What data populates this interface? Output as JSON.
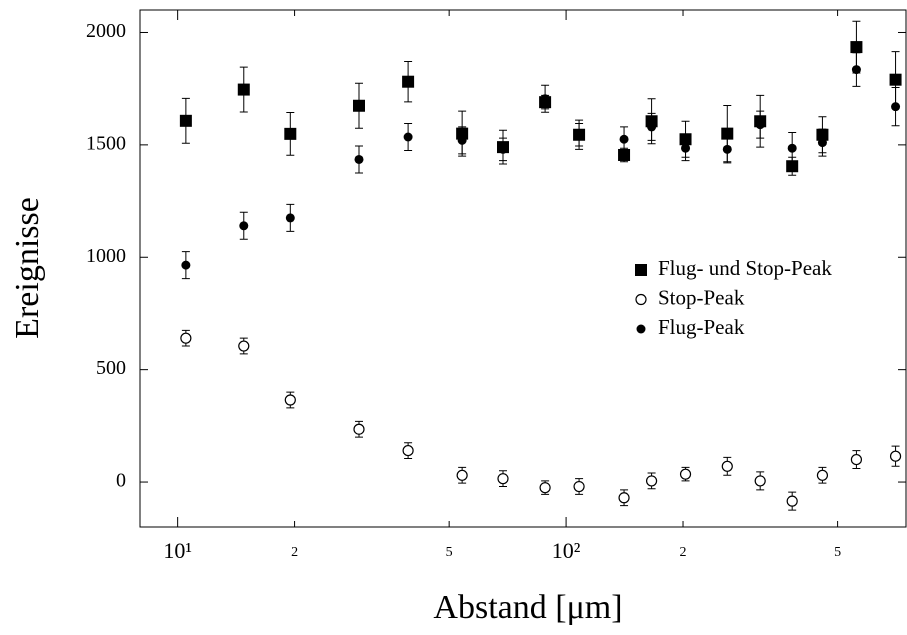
{
  "chart_data": {
    "type": "scatter",
    "xlabel": "Abstand [μm]",
    "ylabel": "Ereignisse",
    "xscale": "log",
    "xlim": [
      8,
      750
    ],
    "ylim": [
      -200,
      2100
    ],
    "xticks": [
      {
        "value": 10,
        "label": "10¹"
      },
      {
        "value": 20,
        "label": "2"
      },
      {
        "value": 50,
        "label": "5"
      },
      {
        "value": 100,
        "label": "10²"
      },
      {
        "value": 200,
        "label": "2"
      },
      {
        "value": 500,
        "label": "5"
      }
    ],
    "yticks": [
      0,
      500,
      1000,
      1500,
      2000
    ],
    "legend": "right",
    "x": [
      10.5,
      14.8,
      19.5,
      29.3,
      39.2,
      54,
      68.8,
      88.3,
      108,
      141,
      166,
      203,
      260,
      316,
      382,
      457,
      559,
      705
    ],
    "series": [
      {
        "name": "Flug- und Stop-Peak",
        "marker": "square",
        "color": "#000000",
        "values": [
          1607,
          1746,
          1549,
          1674,
          1781,
          1550,
          1490,
          1690,
          1545,
          1455,
          1605,
          1525,
          1550,
          1605,
          1405,
          1545,
          1935,
          1790
        ],
        "errors": [
          100,
          100,
          95,
          100,
          90,
          100,
          75,
          30,
          65,
          30,
          100,
          80,
          125,
          115,
          40,
          80,
          115,
          125
        ]
      },
      {
        "name": "Stop-Peak",
        "marker": "open-circle",
        "color": "#000000",
        "values": [
          640,
          605,
          365,
          235,
          140,
          30,
          15,
          -25,
          -20,
          -70,
          5,
          35,
          70,
          5,
          -85,
          30,
          100,
          115
        ],
        "errors": [
          35,
          35,
          35,
          35,
          35,
          35,
          35,
          30,
          35,
          35,
          35,
          30,
          40,
          40,
          40,
          35,
          40,
          45
        ]
      },
      {
        "name": "Flug-Peak",
        "marker": "circle",
        "color": "#000000",
        "values": [
          965,
          1140,
          1175,
          1435,
          1535,
          1520,
          1480,
          1705,
          1545,
          1525,
          1580,
          1485,
          1480,
          1590,
          1485,
          1510,
          1835,
          1670
        ],
        "errors": [
          60,
          60,
          60,
          60,
          60,
          60,
          50,
          60,
          50,
          55,
          60,
          55,
          60,
          60,
          70,
          60,
          75,
          85
        ]
      }
    ]
  }
}
